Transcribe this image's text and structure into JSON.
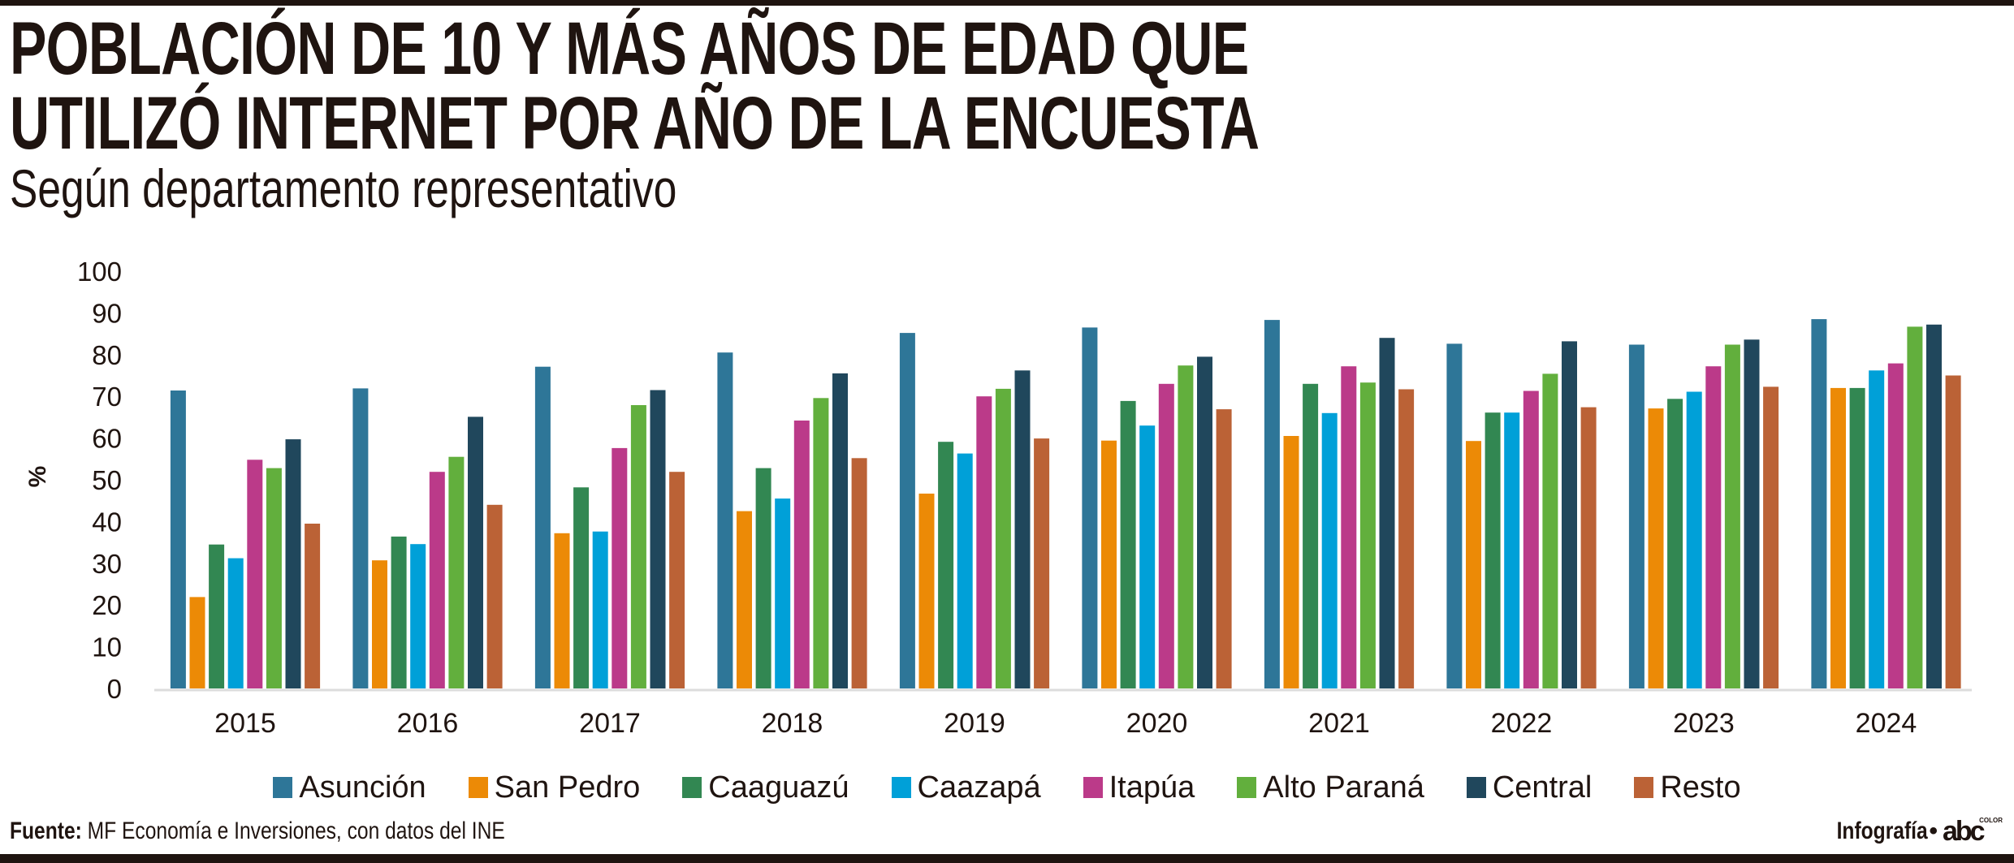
{
  "header": {
    "title_lines": [
      "POBLACIÓN DE 10 Y MÁS AÑOS DE EDAD QUE",
      "UTILIZÓ INTERNET POR AÑO DE LA ENCUESTA"
    ],
    "subtitle": "Según departamento representativo"
  },
  "footer": {
    "source_label": "Fuente:",
    "source_text": " MF Economía e Inversiones, con datos del INE",
    "credit": "Infografía",
    "separator": "•",
    "logo_text": "abc",
    "logo_sup": "COLOR"
  },
  "chart_data": {
    "type": "bar",
    "title": "POBLACIÓN DE 10 Y MÁS AÑOS DE EDAD QUE UTILIZÓ INTERNET POR AÑO DE LA ENCUESTA",
    "subtitle": "Según departamento representativo",
    "xlabel": "",
    "ylabel": "%",
    "ylim": [
      0,
      100
    ],
    "yticks": [
      0,
      10,
      20,
      30,
      40,
      50,
      60,
      70,
      80,
      90,
      100
    ],
    "grid": false,
    "legend_position": "bottom",
    "categories": [
      "2015",
      "2016",
      "2017",
      "2018",
      "2019",
      "2020",
      "2021",
      "2022",
      "2023",
      "2024"
    ],
    "series": [
      {
        "name": "Asunción",
        "color": "#2e7698",
        "values": [
          71.4,
          71.9,
          77.1,
          80.5,
          85.2,
          86.5,
          88.3,
          82.6,
          82.4,
          88.5
        ]
      },
      {
        "name": "San Pedro",
        "color": "#ec8a06",
        "values": [
          21.9,
          30.7,
          37.2,
          42.5,
          46.7,
          59.4,
          60.5,
          59.3,
          67.1,
          72.0
        ]
      },
      {
        "name": "Caaguazú",
        "color": "#328752",
        "values": [
          34.5,
          36.4,
          48.2,
          52.8,
          59.1,
          68.9,
          73.0,
          66.1,
          69.4,
          72.0
        ]
      },
      {
        "name": "Caazapá",
        "color": "#00a0d8",
        "values": [
          31.2,
          34.6,
          37.6,
          45.5,
          56.3,
          63.0,
          66.0,
          66.1,
          71.1,
          76.2
        ]
      },
      {
        "name": "Itapúa",
        "color": "#bb3a89",
        "values": [
          54.8,
          51.9,
          57.6,
          64.2,
          70.0,
          73.0,
          77.2,
          71.3,
          77.2,
          77.9
        ]
      },
      {
        "name": "Alto Paraná",
        "color": "#62af3d",
        "values": [
          52.8,
          55.5,
          67.9,
          69.6,
          71.8,
          77.4,
          73.3,
          75.4,
          82.4,
          86.7
        ]
      },
      {
        "name": "Central",
        "color": "#20475c",
        "values": [
          59.7,
          65.1,
          71.5,
          75.5,
          76.2,
          79.5,
          84.0,
          83.2,
          83.6,
          87.2
        ]
      },
      {
        "name": "Resto",
        "color": "#bb6236",
        "values": [
          39.5,
          44.0,
          51.9,
          55.2,
          59.9,
          66.9,
          71.7,
          67.4,
          72.3,
          75.0
        ]
      }
    ]
  }
}
